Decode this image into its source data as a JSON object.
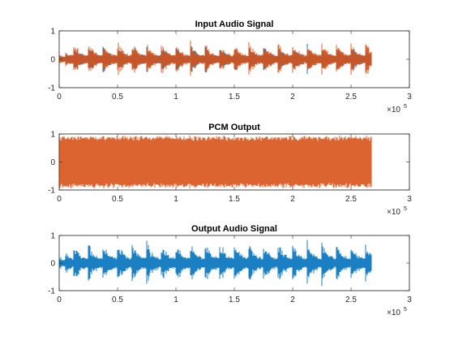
{
  "chart_data": [
    {
      "type": "line",
      "title": "Input Audio Signal",
      "xlabel": "",
      "ylabel": "",
      "xlim": [
        0,
        300000
      ],
      "ylim": [
        -1,
        1
      ],
      "x_ticks": [
        0,
        50000,
        100000,
        150000,
        200000,
        250000,
        300000
      ],
      "x_tick_labels": [
        "0",
        "0.5",
        "1",
        "1.5",
        "2",
        "2.5",
        "3"
      ],
      "y_ticks": [
        -1,
        0,
        1
      ],
      "y_tick_labels": [
        "-1",
        "0",
        "1"
      ],
      "x_exponent_label": "×10",
      "x_exponent_power": "5",
      "grid": false,
      "signal_range": [
        0,
        268000
      ],
      "series": [
        {
          "color": "#0072BD",
          "kind": "audio",
          "envelope": 0.6
        },
        {
          "color": "#D95319",
          "kind": "audio",
          "envelope": 0.7
        }
      ]
    },
    {
      "type": "line",
      "title": "PCM Output",
      "xlabel": "",
      "ylabel": "",
      "xlim": [
        0,
        300000
      ],
      "ylim": [
        -1,
        1
      ],
      "x_ticks": [
        0,
        50000,
        100000,
        150000,
        200000,
        250000,
        300000
      ],
      "x_tick_labels": [
        "0",
        "0.5",
        "1",
        "1.5",
        "2",
        "2.5",
        "3"
      ],
      "y_ticks": [
        -1,
        0,
        1
      ],
      "y_tick_labels": [
        "-1",
        "0",
        "1"
      ],
      "x_exponent_label": "×10",
      "x_exponent_power": "5",
      "grid": false,
      "signal_range": [
        0,
        268000
      ],
      "series": [
        {
          "color": "#D95319",
          "kind": "pcm",
          "envelope": 0.95
        }
      ]
    },
    {
      "type": "line",
      "title": "Output Audio Signal",
      "xlabel": "",
      "ylabel": "",
      "xlim": [
        0,
        300000
      ],
      "ylim": [
        -1,
        1
      ],
      "x_ticks": [
        0,
        50000,
        100000,
        150000,
        200000,
        250000,
        300000
      ],
      "x_tick_labels": [
        "0",
        "0.5",
        "1",
        "1.5",
        "2",
        "2.5",
        "3"
      ],
      "y_ticks": [
        -1,
        0,
        1
      ],
      "y_tick_labels": [
        "-1",
        "0",
        "1"
      ],
      "x_exponent_label": "×10",
      "x_exponent_power": "5",
      "grid": false,
      "signal_range": [
        0,
        268000
      ],
      "series": [
        {
          "color": "#0072BD",
          "kind": "audio",
          "envelope": 0.9
        }
      ]
    }
  ]
}
